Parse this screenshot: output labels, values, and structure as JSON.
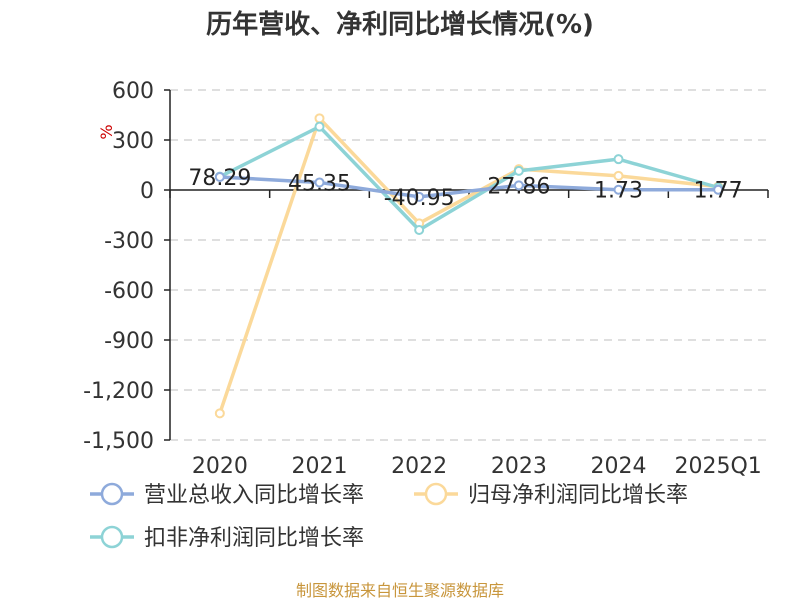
{
  "chart_data": {
    "type": "line",
    "title": "历年营收、净利同比增长情况(%)",
    "ylabel": "%",
    "categories": [
      "2020",
      "2021",
      "2022",
      "2023",
      "2024",
      "2025Q1"
    ],
    "ylim": [
      -1500,
      600
    ],
    "yticks": [
      600,
      300,
      0,
      -300,
      -600,
      -900,
      -1200,
      -1500
    ],
    "ytick_labels": [
      "600",
      "300",
      "0",
      "-300",
      "-600",
      "-900",
      "-1,200",
      "-1,500"
    ],
    "grid": true,
    "legend_position": "bottom",
    "series": [
      {
        "name": "营业总收入同比增长率",
        "color": "#8eaadb",
        "values": [
          78.29,
          45.35,
          -40.95,
          27.86,
          1.73,
          1.77
        ],
        "labels": [
          "78.29",
          "45.35",
          "-40.95",
          "27.86",
          "1.73",
          "1.77"
        ]
      },
      {
        "name": "归母净利润同比增长率",
        "color": "#fbd99a",
        "values": [
          -1340,
          430,
          -200,
          125,
          85,
          20
        ]
      },
      {
        "name": "扣非净利润同比增长率",
        "color": "#8dd3d6",
        "values": [
          80,
          380,
          -240,
          115,
          185,
          15
        ]
      }
    ]
  },
  "source": "制图数据来自恒生聚源数据库"
}
